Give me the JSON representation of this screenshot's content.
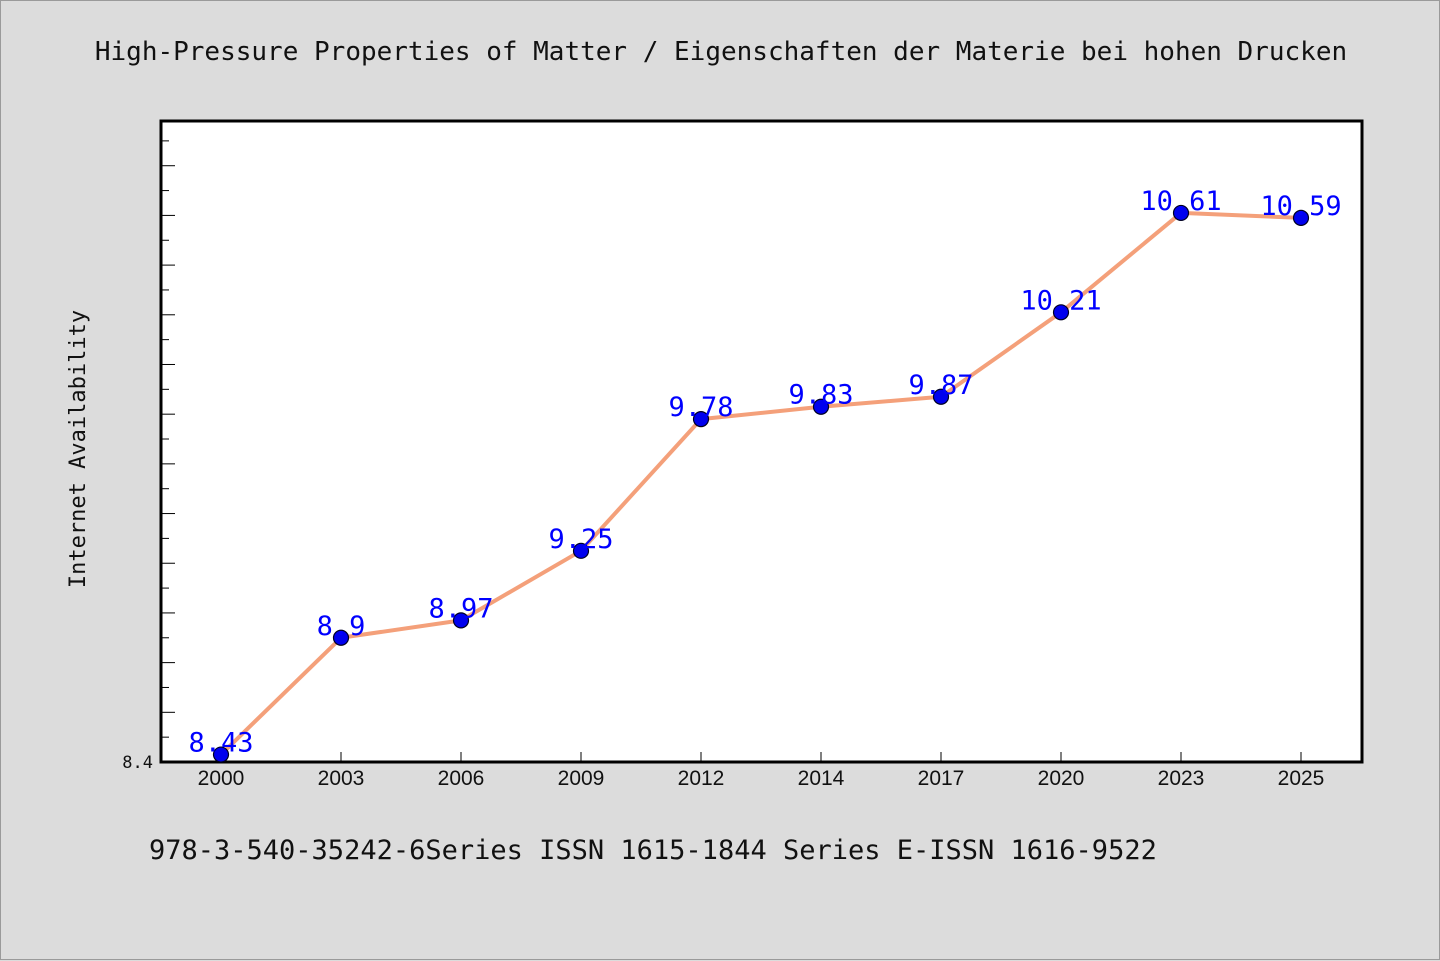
{
  "chart_data": {
    "type": "line",
    "title": "High-Pressure Properties of Matter / Eigenschaften der Materie bei hohen Drucken",
    "xlabel": "",
    "ylabel": "Internet Availability",
    "categories": [
      "2000",
      "2003",
      "2006",
      "2009",
      "2012",
      "2014",
      "2017",
      "2020",
      "2023",
      "2025"
    ],
    "series": [
      {
        "values": [
          8.43,
          8.9,
          8.97,
          9.25,
          9.78,
          9.83,
          9.87,
          10.21,
          10.61,
          10.59
        ]
      }
    ],
    "ylim": [
      8.4,
      10.98
    ],
    "yticks_labeled": [
      "8.4"
    ],
    "grid": false,
    "data_labels": true,
    "colors": {
      "line": "#f4a07a",
      "marker": "#0000ee",
      "label": "#0000ff",
      "background": "#dcdcdc",
      "plot_area": "#ffffff"
    }
  },
  "footer": "978-3-540-35242-6Series ISSN 1615-1844 Series E-ISSN 1616-9522"
}
